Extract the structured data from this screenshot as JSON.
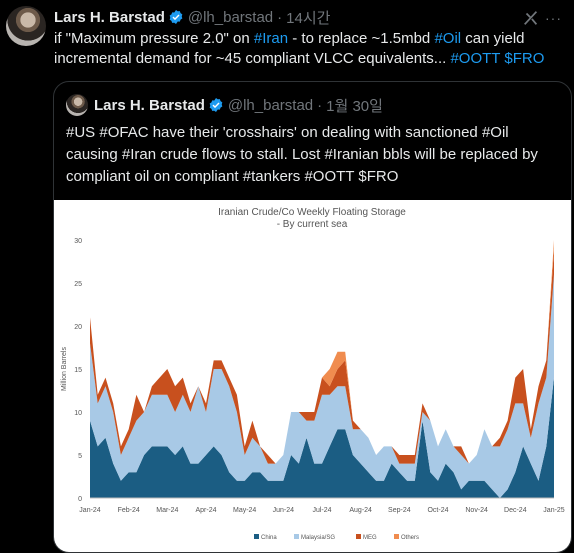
{
  "tweet": {
    "author_name": "Lars H. Barstad",
    "handle": "@lh_barstad",
    "sep": "·",
    "time": "14시간",
    "more": "···",
    "text_parts": [
      {
        "t": "if \"Maximum pressure 2.0\" on ",
        "link": false
      },
      {
        "t": "#Iran",
        "link": true
      },
      {
        "t": " - to replace ~1.5mbd ",
        "link": false
      },
      {
        "t": "#Oil",
        "link": true
      },
      {
        "t": " can yield incremental demand for ~45 compliant VLCC equivalents... ",
        "link": false
      },
      {
        "t": "#OOTT",
        "link": true
      },
      {
        "t": " ",
        "link": false
      },
      {
        "t": "$FRO",
        "link": true
      }
    ]
  },
  "quote": {
    "author_name": "Lars H. Barstad",
    "handle": "@lh_barstad",
    "sep": "·",
    "time": "1월 30일",
    "text": "#US #OFAC have their 'crosshairs' on dealing with sanctioned #Oil causing #Iran crude flows to stall. Lost #Iranian bbls will be replaced by compliant oil on compliant #tankers #OOTT $FRO"
  },
  "colors": {
    "china": "#1b5d83",
    "malaysia": "#a8c9e6",
    "meg": "#c8501e",
    "others": "#f08c4f",
    "link": "#1d9bf0"
  },
  "chart_data": {
    "type": "area",
    "title": "Iranian Crude/Co Weekly Floating Storage",
    "subtitle": "- By current sea",
    "ylabel": "Million Barrels",
    "ylim": [
      0,
      30
    ],
    "yticks": [
      "0",
      "5",
      "10",
      "15",
      "20",
      "25",
      "30"
    ],
    "xticks": [
      "Jan-24",
      "Feb-24",
      "Mar-24",
      "Apr-24",
      "May-24",
      "Jun-24",
      "Jul-24",
      "Aug-24",
      "Sep-24",
      "Oct-24",
      "Nov-24",
      "Dec-24",
      "Jan-25"
    ],
    "legend": [
      "China",
      "Malaysia/SG",
      "MEG",
      "Others"
    ],
    "series": [
      {
        "name": "China",
        "values": [
          9,
          6,
          7,
          4,
          2,
          3,
          3,
          5,
          6,
          6,
          6,
          5,
          6,
          4,
          4,
          5,
          6,
          5,
          3,
          2,
          2,
          3,
          3,
          2,
          2,
          2,
          5,
          4,
          7,
          4,
          4,
          6,
          8,
          8,
          5,
          4,
          3,
          2,
          2,
          4,
          3,
          2,
          2,
          9,
          3,
          2,
          4,
          3,
          1,
          2,
          2,
          2,
          1,
          0,
          1,
          3,
          6,
          4,
          2,
          6,
          14
        ]
      },
      {
        "name": "Malaysia/SG",
        "values": [
          9,
          5,
          6,
          6,
          3,
          4,
          6,
          5,
          6,
          6,
          6,
          5,
          6,
          6,
          9,
          5,
          9,
          10,
          10,
          8,
          3,
          4,
          3,
          2,
          2,
          3,
          5,
          6,
          2,
          5,
          8,
          6,
          5,
          5,
          3,
          4,
          4,
          3,
          4,
          2,
          1,
          2,
          2,
          1,
          6,
          4,
          4,
          3,
          4,
          2,
          3,
          6,
          5,
          6,
          7,
          8,
          5,
          3,
          9,
          8,
          12
        ]
      },
      {
        "name": "MEG",
        "values": [
          3,
          1,
          1,
          1,
          1,
          1,
          3,
          0,
          1,
          2,
          3,
          3,
          2,
          1,
          0,
          1,
          1,
          1,
          1,
          2,
          1,
          2,
          0,
          1,
          0,
          0,
          0,
          0,
          1,
          1,
          2,
          1,
          2,
          3,
          1,
          0,
          0,
          0,
          0,
          0,
          1,
          1,
          1,
          1,
          0,
          0,
          0,
          0,
          1,
          0,
          0,
          0,
          0,
          1,
          1,
          3,
          4,
          1,
          2,
          2,
          3
        ]
      },
      {
        "name": "Others",
        "values": [
          0,
          0,
          0,
          0,
          0,
          0,
          0,
          0,
          0,
          0,
          0,
          0,
          0,
          0,
          0,
          0,
          0,
          0,
          0,
          0,
          0,
          0,
          0,
          0,
          0,
          0,
          0,
          0,
          0,
          0,
          0,
          2,
          2,
          1,
          0,
          0,
          0,
          0,
          0,
          0,
          0,
          0,
          0,
          0,
          0,
          0,
          0,
          0,
          0,
          0,
          0,
          0,
          0,
          0,
          0,
          0,
          0,
          0,
          0,
          0,
          1
        ]
      }
    ]
  }
}
